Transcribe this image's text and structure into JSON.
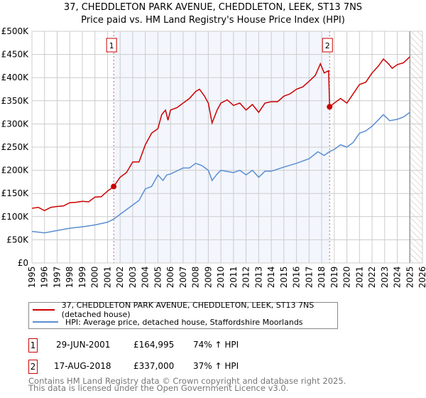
{
  "chart_data": {
    "type": "line",
    "title": "37, CHEDDLETON PARK AVENUE, CHEDDLETON, LEEK, ST13 7NS",
    "subtitle": "Price paid vs. HM Land Registry's House Price Index (HPI)",
    "xlim": [
      1995,
      2026
    ],
    "ylim": [
      0,
      500000
    ],
    "x_ticks": [
      "1995",
      "1996",
      "1997",
      "1998",
      "1999",
      "2000",
      "2001",
      "2002",
      "2003",
      "2004",
      "2005",
      "2006",
      "2007",
      "2008",
      "2009",
      "2010",
      "2011",
      "2012",
      "2013",
      "2014",
      "2015",
      "2016",
      "2017",
      "2018",
      "2019",
      "2020",
      "2021",
      "2022",
      "2023",
      "2024",
      "2025",
      "2026"
    ],
    "y_ticks": [
      {
        "v": 0,
        "label": "£0"
      },
      {
        "v": 50000,
        "label": "£50K"
      },
      {
        "v": 100000,
        "label": "£100K"
      },
      {
        "v": 150000,
        "label": "£150K"
      },
      {
        "v": 200000,
        "label": "£200K"
      },
      {
        "v": 250000,
        "label": "£250K"
      },
      {
        "v": 300000,
        "label": "£300K"
      },
      {
        "v": 350000,
        "label": "£350K"
      },
      {
        "v": 400000,
        "label": "£400K"
      },
      {
        "v": 450000,
        "label": "£450K"
      },
      {
        "v": 500000,
        "label": "£500K"
      }
    ],
    "grid": true,
    "shaded_range": [
      2001.49,
      2018.63
    ],
    "hatched_from": 2025.0,
    "series": [
      {
        "name": "37, CHEDDLETON PARK AVENUE, CHEDDLETON, LEEK, ST13 7NS (detached house)",
        "color": "#cc0000",
        "x": [
          1995,
          1995.5,
          1996,
          1996.5,
          1997,
          1997.5,
          1998,
          1998.5,
          1999,
          1999.5,
          2000,
          2000.5,
          2001,
          2001.49,
          2002,
          2002.5,
          2003,
          2003.5,
          2004,
          2004.5,
          2005,
          2005.3,
          2005.6,
          2005.8,
          2006,
          2006.5,
          2007,
          2007.5,
          2008,
          2008.3,
          2008.7,
          2009,
          2009.3,
          2009.7,
          2010,
          2010.5,
          2011,
          2011.5,
          2012,
          2012.5,
          2013,
          2013.5,
          2014,
          2014.5,
          2015,
          2015.5,
          2016,
          2016.5,
          2017,
          2017.5,
          2017.9,
          2018.2,
          2018.55,
          2018.63,
          2019,
          2019.5,
          2020,
          2020.5,
          2021,
          2021.5,
          2022,
          2022.5,
          2022.9,
          2023.3,
          2023.6,
          2024,
          2024.5,
          2025
        ],
        "y": [
          118,
          120,
          113,
          120,
          122,
          123,
          130,
          131,
          133,
          132,
          142,
          143,
          155,
          165,
          185,
          195,
          218,
          218,
          255,
          280,
          290,
          320,
          330,
          308,
          330,
          335,
          345,
          355,
          370,
          375,
          360,
          345,
          302,
          330,
          345,
          352,
          340,
          345,
          330,
          342,
          325,
          345,
          348,
          348,
          360,
          365,
          375,
          380,
          392,
          405,
          430,
          410,
          415,
          337,
          345,
          355,
          345,
          365,
          385,
          390,
          410,
          425,
          440,
          430,
          420,
          428,
          432,
          445
        ]
      },
      {
        "name": "HPI: Average price, detached house, Staffordshire Moorlands",
        "color": "#5b8fd0",
        "x": [
          1995,
          1996,
          1997,
          1998,
          1999,
          2000,
          2001,
          2001.5,
          2002,
          2003,
          2003.5,
          2004,
          2004.5,
          2005,
          2005.4,
          2005.7,
          2006,
          2007,
          2007.5,
          2008,
          2008.5,
          2009,
          2009.3,
          2009.7,
          2010,
          2011,
          2011.5,
          2012,
          2012.5,
          2013,
          2013.5,
          2014,
          2015,
          2016,
          2016.5,
          2017,
          2017.7,
          2018.2,
          2018.6,
          2019,
          2019.5,
          2020,
          2020.5,
          2021,
          2021.5,
          2022,
          2022.9,
          2023.4,
          2024,
          2024.5,
          2025
        ],
        "y": [
          68,
          65,
          70,
          75,
          78,
          82,
          88,
          95,
          105,
          125,
          135,
          160,
          165,
          190,
          178,
          190,
          192,
          205,
          205,
          215,
          210,
          200,
          178,
          192,
          200,
          195,
          200,
          190,
          200,
          185,
          198,
          198,
          207,
          215,
          220,
          225,
          240,
          232,
          240,
          245,
          255,
          250,
          260,
          280,
          285,
          295,
          320,
          307,
          310,
          315,
          325
        ]
      }
    ],
    "y_units": "thousands GBP",
    "sales": [
      {
        "id": "1",
        "x": 2001.49,
        "y": 164995,
        "date": "29-JUN-2001",
        "price": "£164,995",
        "delta": "74% ↑ HPI"
      },
      {
        "id": "2",
        "x": 2018.63,
        "y": 337000,
        "date": "17-AUG-2018",
        "price": "£337,000",
        "delta": "37% ↑ HPI"
      }
    ]
  },
  "legend": {
    "red": "37, CHEDDLETON PARK AVENUE, CHEDDLETON, LEEK, ST13 7NS (detached house)",
    "blue": "HPI: Average price, detached house, Staffordshire Moorlands"
  },
  "footer": {
    "line1": "Contains HM Land Registry data © Crown copyright and database right 2025.",
    "line2": "This data is licensed under the Open Government Licence v3.0."
  }
}
